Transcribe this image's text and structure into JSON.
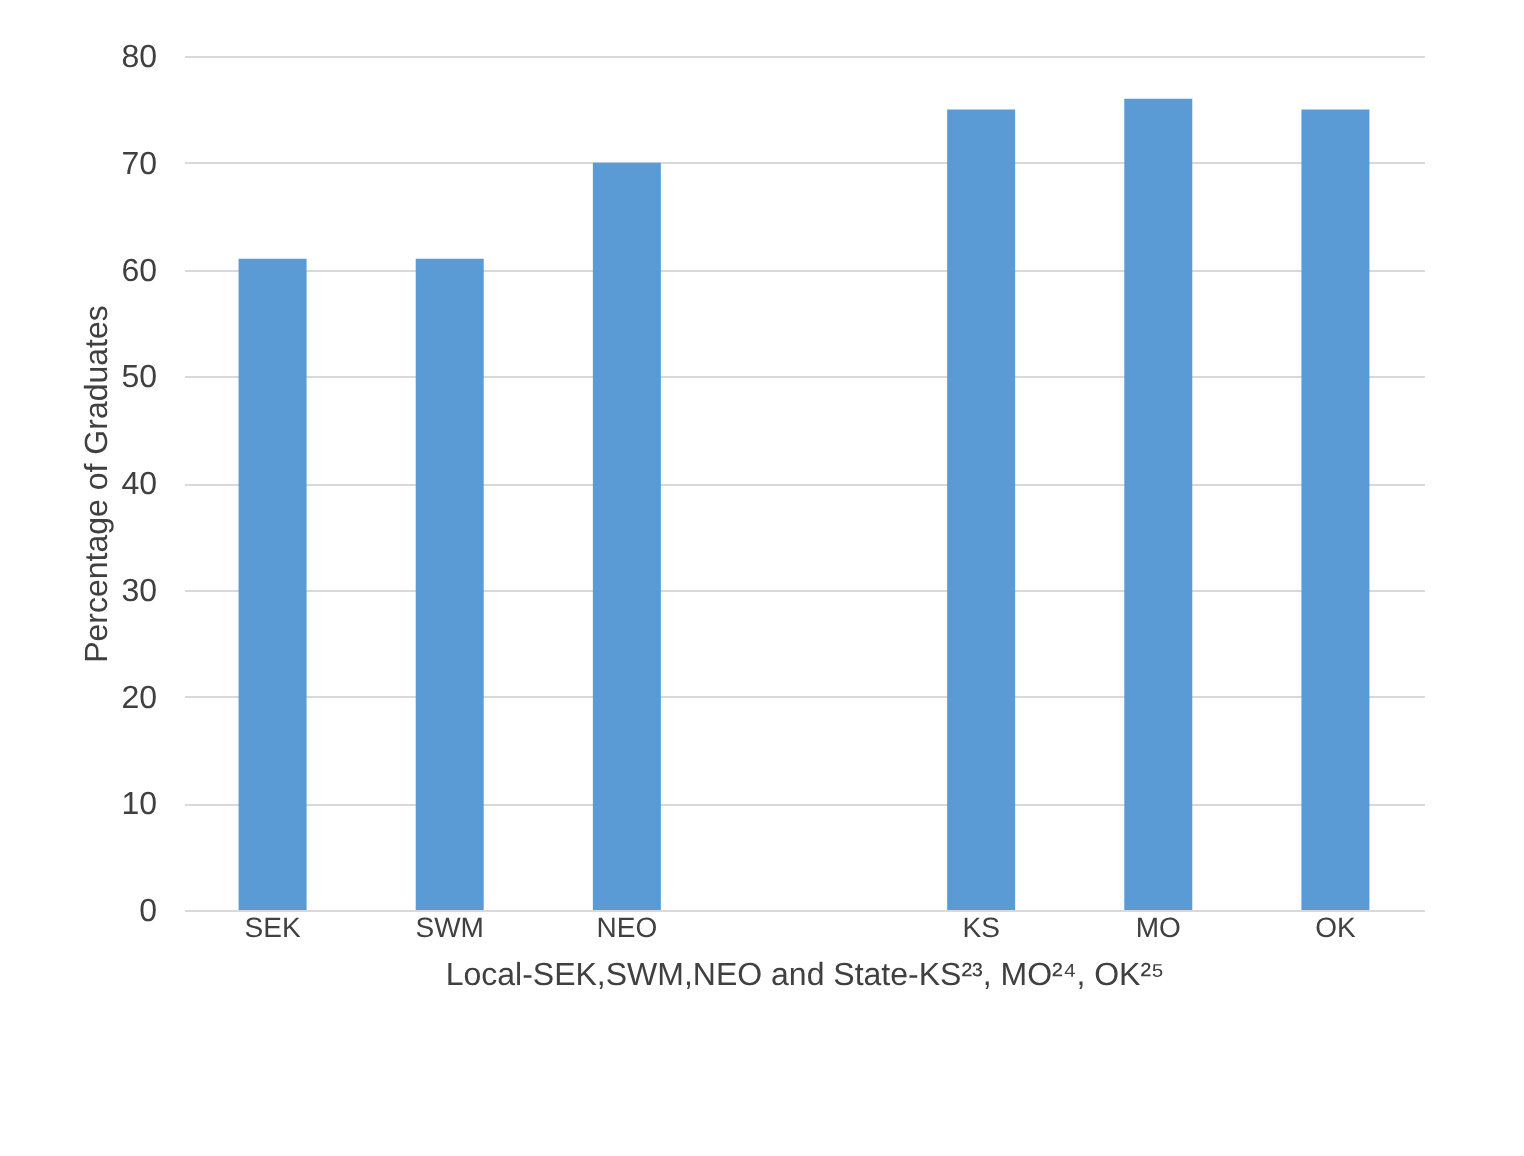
{
  "chart_data": {
    "type": "bar",
    "categories": [
      "SEK",
      "SWM",
      "NEO",
      null,
      "KS",
      "MO",
      "OK"
    ],
    "values": [
      61,
      61,
      70,
      null,
      75,
      76,
      75
    ],
    "color": "#5b9bd5",
    "xlabel": "Local-SEK,SWM,NEO and State-KS²³, MO²⁴, OK²⁵",
    "ylabel": "Percentage of Graduates",
    "ylim": [
      0,
      80
    ],
    "yticks": [
      0,
      10,
      20,
      30,
      40,
      50,
      60,
      70,
      80
    ],
    "grid": "y"
  }
}
